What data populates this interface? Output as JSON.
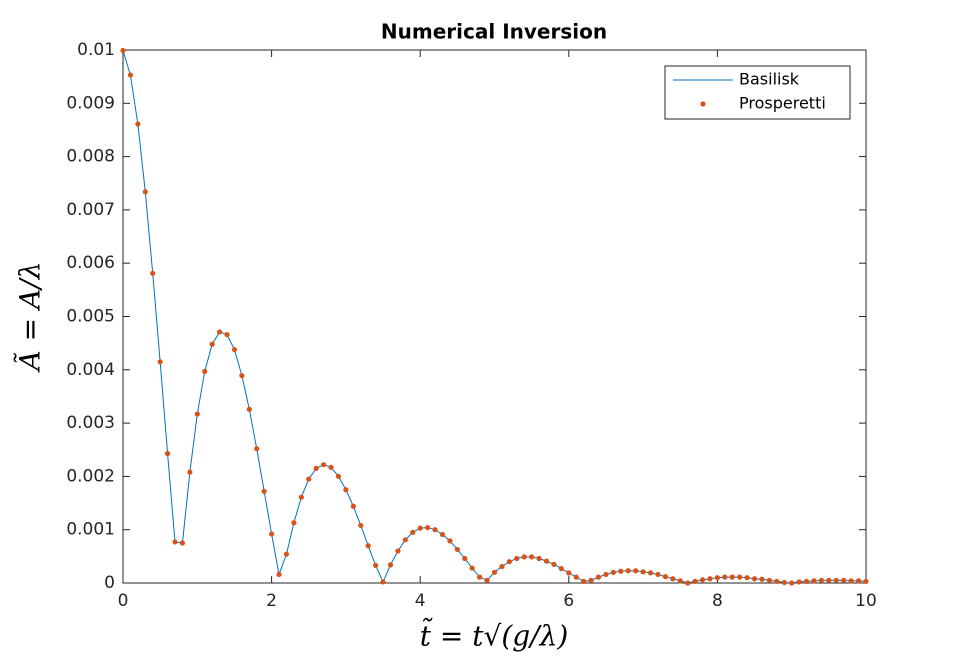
{
  "chart_data": {
    "type": "line",
    "title": "Numerical Inversion",
    "x_label": "t̃ = t√(g/λ)",
    "y_label": "Ã = A/λ",
    "xlim": [
      0,
      10
    ],
    "xticks": [
      0,
      2,
      4,
      6,
      8,
      10
    ],
    "ylim": [
      0,
      0.01
    ],
    "yticks": [
      0,
      0.001,
      0.002,
      0.003,
      0.004,
      0.005,
      0.006,
      0.007,
      0.008,
      0.009,
      0.01
    ],
    "legend": "upper right",
    "grid": false,
    "x": [
      0,
      0.1,
      0.2,
      0.3,
      0.4,
      0.5,
      0.6,
      0.7,
      0.8,
      0.9,
      1,
      1.1,
      1.2,
      1.3,
      1.4,
      1.5,
      1.6,
      1.7,
      1.8,
      1.9,
      2,
      2.1,
      2.2,
      2.3,
      2.4,
      2.5,
      2.6,
      2.7,
      2.8,
      2.9,
      3,
      3.1,
      3.2,
      3.3,
      3.4,
      3.5,
      3.6,
      3.7,
      3.8,
      3.9,
      4,
      4.1,
      4.2,
      4.3,
      4.4,
      4.5,
      4.6,
      4.7,
      4.8,
      4.9,
      5,
      5.1,
      5.2,
      5.3,
      5.4,
      5.5,
      5.6,
      5.7,
      5.8,
      5.9,
      6,
      6.1,
      6.2,
      6.3,
      6.4,
      6.5,
      6.6,
      6.7,
      6.8,
      6.9,
      7,
      7.1,
      7.2,
      7.3,
      7.4,
      7.5,
      7.6,
      7.7,
      7.8,
      7.9,
      8,
      8.1,
      8.2,
      8.3,
      8.4,
      8.5,
      8.6,
      8.7,
      8.8,
      8.9,
      9,
      9.1,
      9.2,
      9.3,
      9.4,
      9.5,
      9.6,
      9.7,
      9.8,
      9.9,
      10
    ],
    "series": [
      {
        "name": "Basilisk",
        "style": "line",
        "color": "#0072bd",
        "values": [
          0.00999,
          0.00953,
          0.00861,
          0.00734,
          0.00581,
          0.00415,
          0.00243,
          0.00077,
          0.00075,
          0.00208,
          0.00317,
          0.00397,
          0.00448,
          0.00471,
          0.00466,
          0.00438,
          0.00389,
          0.00326,
          0.00252,
          0.00172,
          0.00092,
          0.00016,
          0.00054,
          0.00113,
          0.00161,
          0.00195,
          0.00215,
          0.00222,
          0.00217,
          0.002,
          0.00175,
          0.00144,
          0.00108,
          0.0007,
          0.00033,
          2e-05,
          0.00034,
          0.0006,
          0.00081,
          0.00095,
          0.00103,
          0.00104,
          0.001,
          0.00091,
          0.00079,
          0.00063,
          0.00046,
          0.00028,
          0.00011,
          5e-05,
          0.0002,
          0.00031,
          0.0004,
          0.00046,
          0.00049,
          0.00049,
          0.00046,
          0.00041,
          0.00035,
          0.00027,
          0.00019,
          0.00011,
          3e-05,
          5e-05,
          0.00011,
          0.00016,
          0.0002,
          0.00022,
          0.00023,
          0.00023,
          0.00021,
          0.00019,
          0.00016,
          0.00012,
          8e-05,
          4e-05,
          0,
          3e-05,
          6e-05,
          8e-05,
          0.0001,
          0.00011,
          0.00011,
          0.00011,
          0.0001,
          8e-05,
          7e-05,
          5e-05,
          3e-05,
          1e-05,
          0,
          2e-05,
          3e-05,
          4e-05,
          5e-05,
          5e-05,
          5e-05,
          5e-05,
          4e-05,
          4e-05,
          3e-05
        ]
      },
      {
        "name": "Prosperetti",
        "style": "dots",
        "color": "#d95319",
        "values": [
          0.00999,
          0.00953,
          0.00861,
          0.00734,
          0.00581,
          0.00415,
          0.00243,
          0.00077,
          0.00075,
          0.00208,
          0.00317,
          0.00397,
          0.00448,
          0.00471,
          0.00466,
          0.00438,
          0.00389,
          0.00326,
          0.00252,
          0.00172,
          0.00092,
          0.00016,
          0.00054,
          0.00113,
          0.00161,
          0.00195,
          0.00215,
          0.00222,
          0.00217,
          0.002,
          0.00175,
          0.00144,
          0.00108,
          0.0007,
          0.00033,
          2e-05,
          0.00034,
          0.0006,
          0.00081,
          0.00095,
          0.00103,
          0.00104,
          0.001,
          0.00091,
          0.00079,
          0.00063,
          0.00046,
          0.00028,
          0.00011,
          5e-05,
          0.0002,
          0.00031,
          0.0004,
          0.00046,
          0.00049,
          0.00049,
          0.00046,
          0.00041,
          0.00035,
          0.00027,
          0.00019,
          0.00011,
          3e-05,
          5e-05,
          0.00011,
          0.00016,
          0.0002,
          0.00022,
          0.00023,
          0.00023,
          0.00021,
          0.00019,
          0.00016,
          0.00012,
          8e-05,
          4e-05,
          0,
          3e-05,
          6e-05,
          8e-05,
          0.0001,
          0.00011,
          0.00011,
          0.00011,
          0.0001,
          8e-05,
          7e-05,
          5e-05,
          3e-05,
          1e-05,
          0,
          2e-05,
          3e-05,
          4e-05,
          5e-05,
          5e-05,
          5e-05,
          5e-05,
          4e-05,
          4e-05,
          3e-05
        ]
      }
    ]
  }
}
